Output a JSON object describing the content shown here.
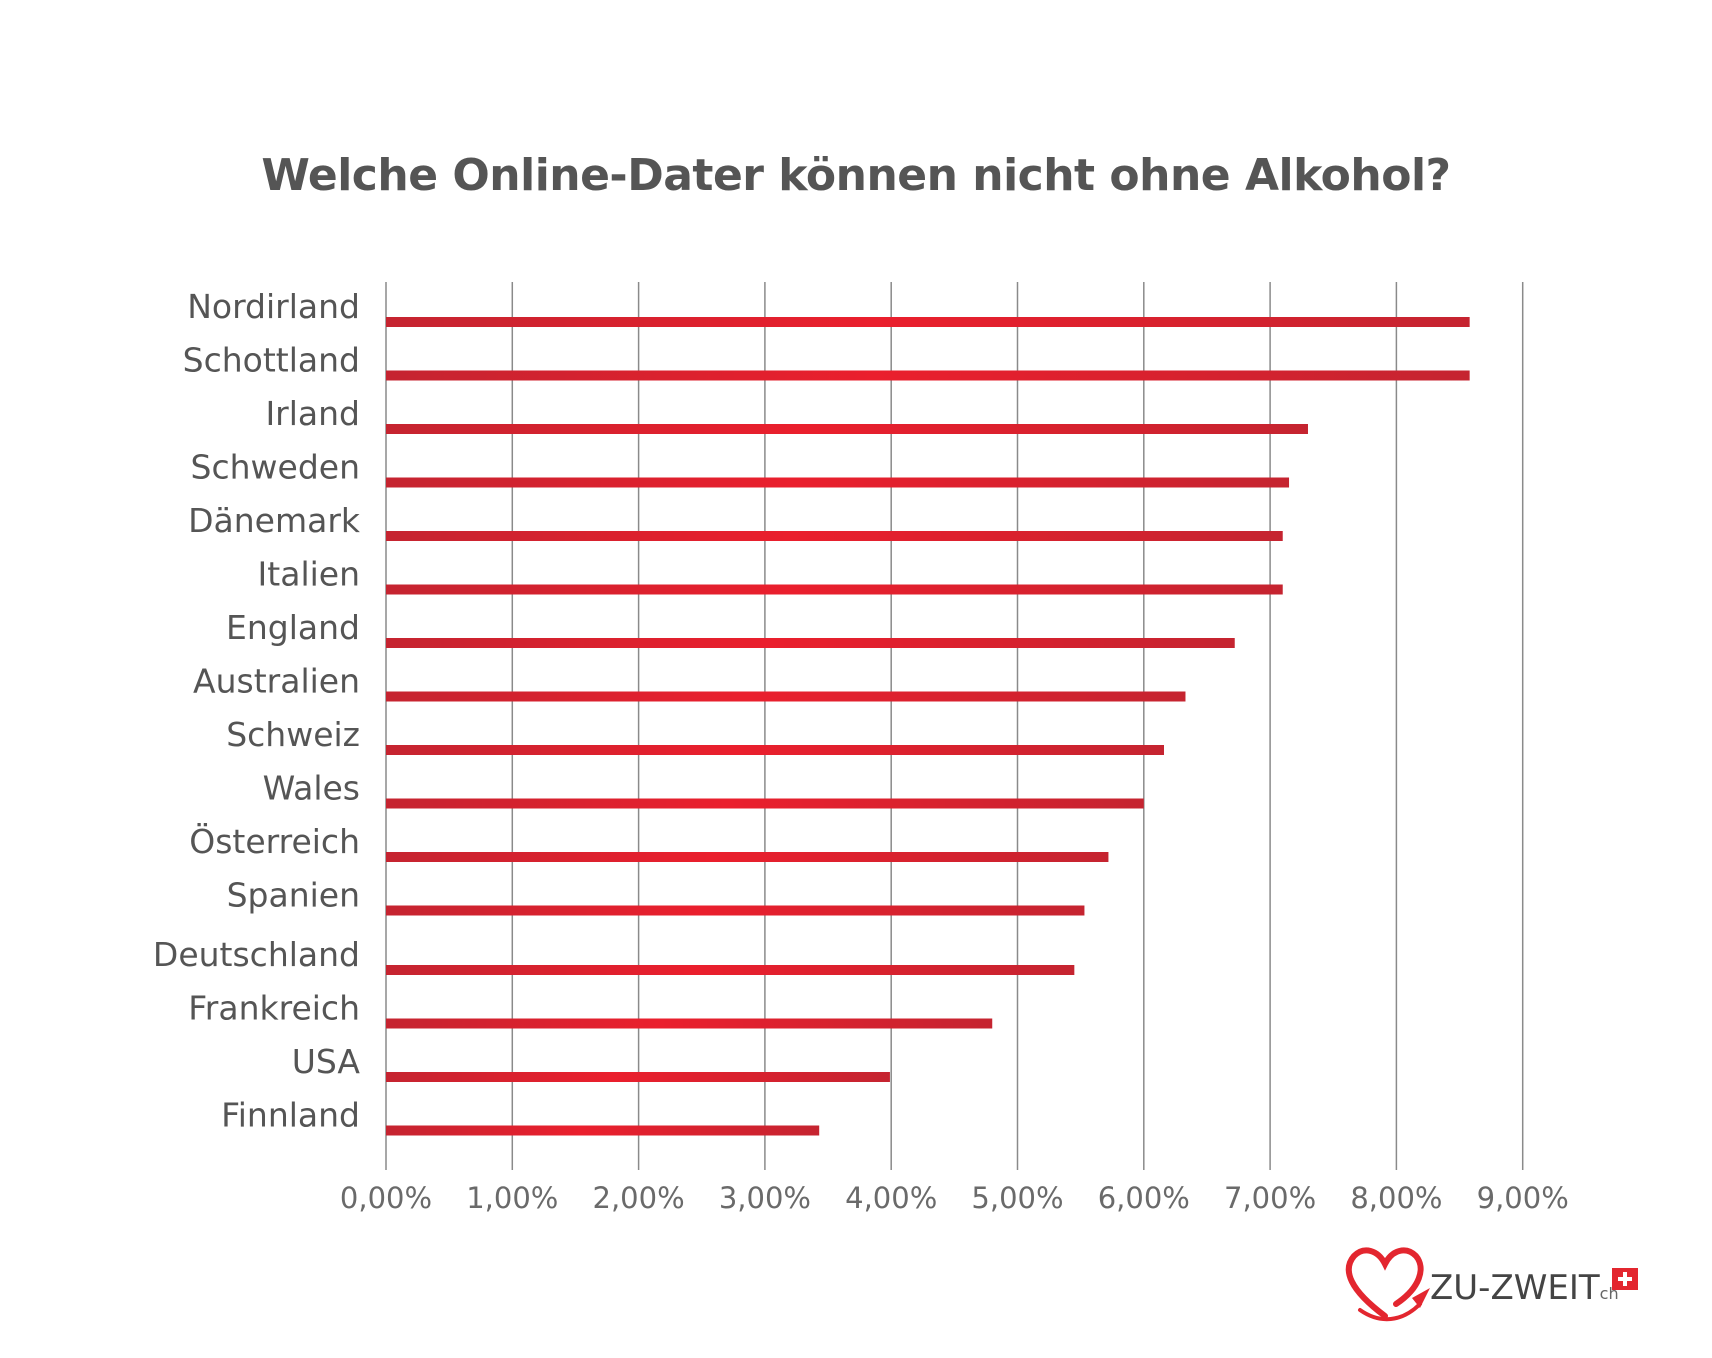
{
  "chart_data": {
    "type": "bar",
    "orientation": "horizontal",
    "title": "Welche Online-Dater können nicht ohne Alkohol?",
    "categories": [
      "Nordirland",
      "Schottland",
      "Irland",
      "Schweden",
      "Dänemark",
      "Italien",
      "England",
      "Australien",
      "Schweiz",
      "Wales",
      "Österreich",
      "Spanien",
      "Deutschland",
      "Frankreich",
      "USA",
      "Finnland"
    ],
    "values": [
      8.58,
      8.58,
      7.3,
      7.15,
      7.1,
      7.1,
      6.72,
      6.33,
      6.16,
      6.0,
      5.72,
      5.53,
      5.45,
      4.8,
      3.99,
      3.43
    ],
    "unit": "%",
    "xlim": [
      0,
      9
    ],
    "xticks": [
      "0,00%",
      "1,00%",
      "2,00%",
      "3,00%",
      "4,00%",
      "5,00%",
      "6,00%",
      "7,00%",
      "8,00%",
      "9,00%"
    ],
    "grid": true,
    "bar_color": "#c8202f",
    "bar_highlight": "#ea1f2d"
  },
  "logo": {
    "text": "ZU-ZWEIT",
    "suffix": "ch",
    "icon": "heart-plane-icon",
    "flag": "swiss-flag-icon",
    "heart_color": "#e3262f",
    "flag_color": "#e3262f"
  }
}
